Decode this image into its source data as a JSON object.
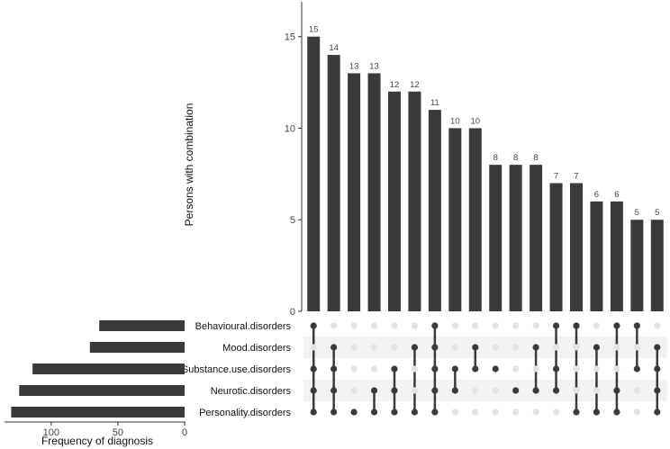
{
  "chart_data": {
    "type": "bar",
    "subtype": "upset",
    "main": {
      "ylabel": "Persons with combination",
      "ylim": [
        0,
        17
      ],
      "yticks": [
        0,
        5,
        10,
        15
      ],
      "values": [
        15,
        14,
        13,
        13,
        12,
        12,
        11,
        10,
        10,
        8,
        8,
        8,
        7,
        7,
        6,
        6,
        5,
        5
      ],
      "grid": false
    },
    "sets": [
      "Behavioural.disorders",
      "Mood.disorders",
      "Substance.use.disorders",
      "Neurotic.disorders",
      "Personality.disorders"
    ],
    "set_sizes": {
      "xlabel": "Frequency of diagnosis",
      "xticks": [
        100,
        50,
        0
      ],
      "xlim": [
        0,
        135
      ],
      "values": [
        64,
        71,
        114,
        124,
        130
      ]
    },
    "combinations": [
      [
        0,
        2,
        3,
        4
      ],
      [
        1,
        2,
        3,
        4
      ],
      [
        4
      ],
      [
        3,
        4
      ],
      [
        2,
        3,
        4
      ],
      [
        1,
        4
      ],
      [
        0,
        1,
        2,
        3,
        4
      ],
      [
        2,
        3
      ],
      [
        1,
        2
      ],
      [
        2
      ],
      [
        3
      ],
      [
        1,
        3
      ],
      [
        0,
        2,
        3
      ],
      [
        0,
        4
      ],
      [
        1,
        4
      ],
      [
        0,
        3,
        4
      ],
      [
        0,
        2
      ],
      [
        1,
        2,
        3,
        4
      ]
    ],
    "colors": {
      "bar": "#3a3a3a",
      "dot_active": "#3a3a3a",
      "dot_inactive": "#e3e3e3",
      "stripe": "#f2f2f2"
    }
  }
}
